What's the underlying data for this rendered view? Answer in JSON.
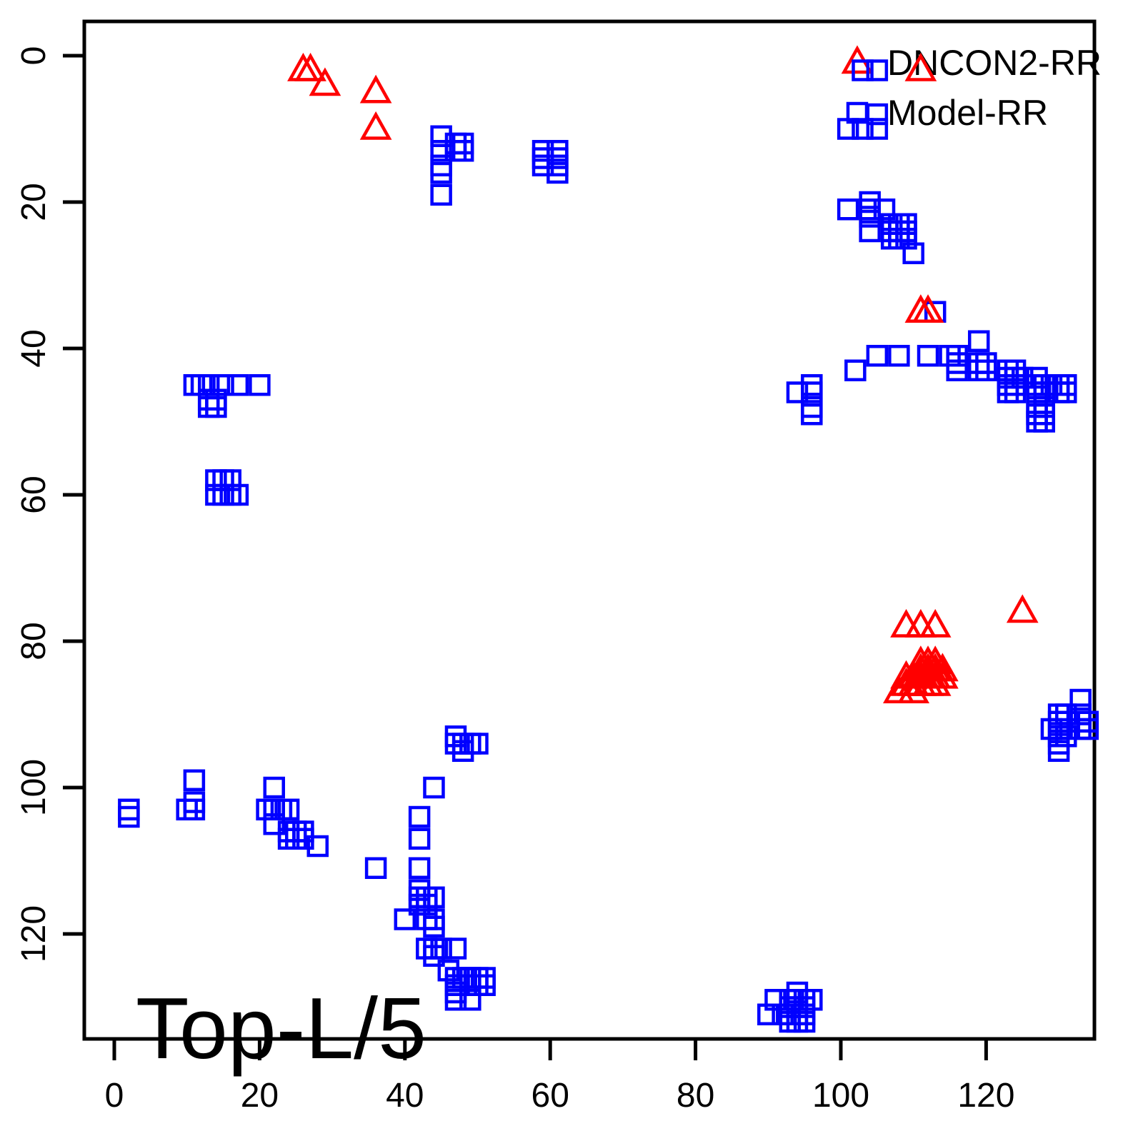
{
  "chart_data": {
    "type": "scatter",
    "title": "",
    "annotation": "Top-L/5",
    "xlabel": "",
    "ylabel": "",
    "x_ticks": [
      0,
      20,
      40,
      60,
      80,
      100,
      120
    ],
    "y_ticks": [
      0,
      20,
      40,
      60,
      80,
      100,
      120
    ],
    "xlim": [
      -4,
      135
    ],
    "ylim": [
      -5,
      134
    ],
    "y_axis_reversed": true,
    "grid": false,
    "legend_position": "top-right",
    "legend": [
      {
        "label": "DNCON2-RR",
        "marker": "triangle",
        "color": "#ff0000"
      },
      {
        "label": "Model-RR",
        "marker": "square",
        "color": "#0000ff"
      }
    ],
    "series": [
      {
        "name": "DNCON2-RR",
        "marker": "triangle",
        "color": "#ff0000",
        "points": [
          [
            26,
            2
          ],
          [
            27,
            2
          ],
          [
            29,
            4
          ],
          [
            36,
            5
          ],
          [
            36,
            10
          ],
          [
            111,
            2
          ],
          [
            111,
            35
          ],
          [
            112,
            35
          ],
          [
            125,
            76
          ],
          [
            109,
            78
          ],
          [
            111,
            78
          ],
          [
            113,
            78
          ],
          [
            111,
            83
          ],
          [
            112,
            83
          ],
          [
            113,
            83
          ],
          [
            111,
            84
          ],
          [
            112,
            84
          ],
          [
            113,
            84
          ],
          [
            114,
            84
          ],
          [
            109,
            85
          ],
          [
            110,
            85
          ],
          [
            111,
            85
          ],
          [
            112,
            85
          ],
          [
            113,
            85
          ],
          [
            114,
            85
          ],
          [
            109,
            86
          ],
          [
            110,
            86
          ],
          [
            111,
            86
          ],
          [
            112,
            86
          ],
          [
            113,
            86
          ],
          [
            108,
            87
          ],
          [
            110,
            87
          ]
        ]
      },
      {
        "name": "Model-RR",
        "marker": "square",
        "color": "#0000ff",
        "points": [
          [
            103,
            2
          ],
          [
            105,
            2
          ],
          [
            105,
            8
          ],
          [
            101,
            10
          ],
          [
            103,
            10
          ],
          [
            105,
            10
          ],
          [
            45,
            11
          ],
          [
            45,
            13
          ],
          [
            45,
            15
          ],
          [
            45,
            16
          ],
          [
            45,
            19
          ],
          [
            47,
            12
          ],
          [
            48,
            12
          ],
          [
            47,
            13
          ],
          [
            48,
            13
          ],
          [
            59,
            13
          ],
          [
            59,
            14
          ],
          [
            59,
            15
          ],
          [
            61,
            13
          ],
          [
            61,
            14
          ],
          [
            61,
            15
          ],
          [
            61,
            16
          ],
          [
            101,
            21
          ],
          [
            104,
            20
          ],
          [
            104,
            21
          ],
          [
            106,
            21
          ],
          [
            104,
            22
          ],
          [
            104,
            24
          ],
          [
            107,
            23
          ],
          [
            108,
            23
          ],
          [
            109,
            23
          ],
          [
            107,
            24
          ],
          [
            108,
            24
          ],
          [
            109,
            24
          ],
          [
            107,
            25
          ],
          [
            108,
            25
          ],
          [
            109,
            25
          ],
          [
            110,
            27
          ],
          [
            113,
            35
          ],
          [
            119,
            39
          ],
          [
            105,
            41
          ],
          [
            108,
            41
          ],
          [
            112,
            41
          ],
          [
            115,
            41
          ],
          [
            116,
            41
          ],
          [
            116,
            42
          ],
          [
            116,
            43
          ],
          [
            102,
            43
          ],
          [
            119,
            42
          ],
          [
            120,
            42
          ],
          [
            119,
            43
          ],
          [
            120,
            43
          ],
          [
            123,
            43
          ],
          [
            124,
            43
          ],
          [
            123,
            44
          ],
          [
            124,
            44
          ],
          [
            125,
            44
          ],
          [
            123,
            45
          ],
          [
            124,
            45
          ],
          [
            123,
            46
          ],
          [
            124,
            46
          ],
          [
            127,
            44
          ],
          [
            127,
            45
          ],
          [
            127,
            46
          ],
          [
            128,
            45
          ],
          [
            128,
            46
          ],
          [
            129,
            45
          ],
          [
            130,
            45
          ],
          [
            131,
            45
          ],
          [
            130,
            46
          ],
          [
            131,
            46
          ],
          [
            127,
            48
          ],
          [
            128,
            48
          ],
          [
            127,
            49
          ],
          [
            128,
            49
          ],
          [
            127,
            50
          ],
          [
            128,
            50
          ],
          [
            94,
            46
          ],
          [
            96,
            45
          ],
          [
            96,
            46
          ],
          [
            96,
            48
          ],
          [
            96,
            49
          ],
          [
            11,
            45
          ],
          [
            12,
            45
          ],
          [
            13,
            45
          ],
          [
            15,
            45
          ],
          [
            17,
            45
          ],
          [
            20,
            45
          ],
          [
            13,
            47
          ],
          [
            14,
            47
          ],
          [
            13,
            48
          ],
          [
            14,
            48
          ],
          [
            14,
            58
          ],
          [
            15,
            58
          ],
          [
            16,
            58
          ],
          [
            14,
            60
          ],
          [
            15,
            60
          ],
          [
            16,
            60
          ],
          [
            17,
            60
          ],
          [
            47,
            93
          ],
          [
            47,
            94
          ],
          [
            48,
            94
          ],
          [
            49,
            94
          ],
          [
            50,
            94
          ],
          [
            48,
            95
          ],
          [
            2,
            103
          ],
          [
            2,
            104
          ],
          [
            11,
            99
          ],
          [
            11,
            102
          ],
          [
            10,
            103
          ],
          [
            11,
            103
          ],
          [
            22,
            100
          ],
          [
            21,
            103
          ],
          [
            22,
            103
          ],
          [
            23,
            103
          ],
          [
            24,
            103
          ],
          [
            22,
            105
          ],
          [
            24,
            106
          ],
          [
            25,
            106
          ],
          [
            26,
            106
          ],
          [
            24,
            107
          ],
          [
            25,
            107
          ],
          [
            26,
            107
          ],
          [
            28,
            108
          ],
          [
            36,
            111
          ],
          [
            44,
            100
          ],
          [
            42,
            104
          ],
          [
            42,
            107
          ],
          [
            42,
            111
          ],
          [
            42,
            114
          ],
          [
            42,
            115
          ],
          [
            43,
            115
          ],
          [
            44,
            115
          ],
          [
            42,
            116
          ],
          [
            43,
            116
          ],
          [
            40,
            118
          ],
          [
            43,
            118
          ],
          [
            44,
            118
          ],
          [
            44,
            119
          ],
          [
            43,
            122
          ],
          [
            44,
            122
          ],
          [
            45,
            122
          ],
          [
            47,
            122
          ],
          [
            44,
            123
          ],
          [
            46,
            125
          ],
          [
            47,
            126
          ],
          [
            48,
            126
          ],
          [
            49,
            126
          ],
          [
            50,
            126
          ],
          [
            51,
            126
          ],
          [
            47,
            127
          ],
          [
            49,
            127
          ],
          [
            50,
            127
          ],
          [
            51,
            127
          ],
          [
            47,
            128
          ],
          [
            47,
            129
          ],
          [
            49,
            129
          ],
          [
            94,
            128
          ],
          [
            91,
            129
          ],
          [
            93,
            129
          ],
          [
            94,
            129
          ],
          [
            95,
            129
          ],
          [
            96,
            129
          ],
          [
            93,
            130
          ],
          [
            94,
            130
          ],
          [
            95,
            130
          ],
          [
            90,
            131
          ],
          [
            92,
            131
          ],
          [
            93,
            131
          ],
          [
            94,
            131
          ],
          [
            95,
            131
          ],
          [
            93,
            132
          ],
          [
            94,
            132
          ],
          [
            95,
            132
          ],
          [
            133,
            88
          ],
          [
            130,
            90
          ],
          [
            131,
            90
          ],
          [
            133,
            90
          ],
          [
            130,
            91
          ],
          [
            133,
            91
          ],
          [
            134,
            91
          ],
          [
            129,
            92
          ],
          [
            130,
            92
          ],
          [
            133,
            92
          ],
          [
            134,
            92
          ],
          [
            130,
            93
          ],
          [
            131,
            93
          ],
          [
            130,
            94
          ],
          [
            130,
            95
          ]
        ]
      }
    ]
  },
  "colors": {
    "dncon2": "#ff0000",
    "model": "#0000ff",
    "axis": "#000000",
    "background": "#ffffff"
  }
}
